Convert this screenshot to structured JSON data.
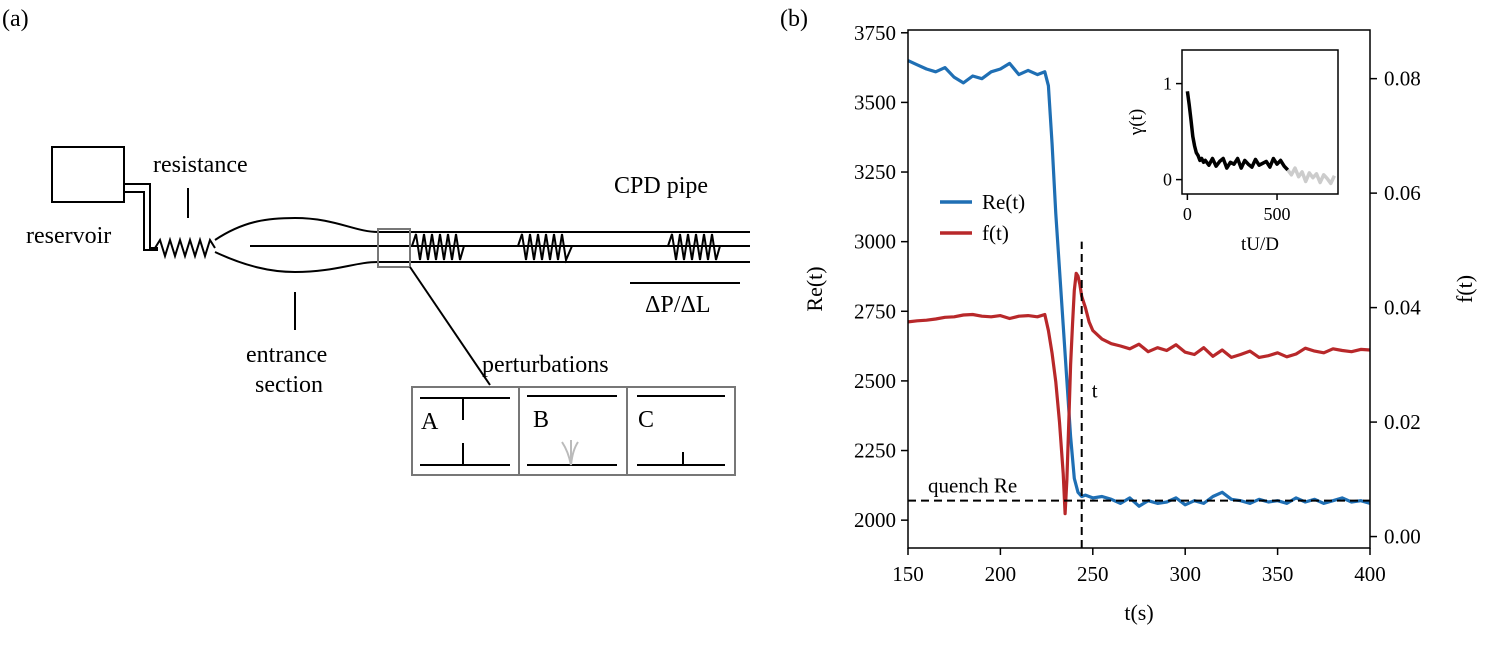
{
  "panel_a": {
    "label": "(a)",
    "labels": {
      "reservoir": "reservoir",
      "resistance": "resistance",
      "pipe": "CPD pipe",
      "pressure_gradient": "ΔP/ΔL",
      "entrance_line1": "entrance",
      "entrance_line2": "section",
      "perturbations": "perturbations",
      "box_a": "A",
      "box_b": "B",
      "box_c": "C"
    }
  },
  "panel_b": {
    "label": "(b)",
    "t_marker": "t",
    "quench_label": "quench Re"
  },
  "chart_data": [
    {
      "type": "line",
      "xlabel": "t(s)",
      "ylabel": "Re(t)",
      "ylabel_right": "f(t)",
      "xlim": [
        150,
        400
      ],
      "ylim": [
        1900,
        3760
      ],
      "ylim_right": [
        -0.002,
        0.0885
      ],
      "xticks": [
        150,
        200,
        250,
        300,
        350,
        400
      ],
      "yticks": [
        2000,
        2250,
        2500,
        2750,
        3000,
        3250,
        3500,
        3750
      ],
      "yticks_right": [
        0.0,
        0.02,
        0.04,
        0.06,
        0.08
      ],
      "yticks_right_labels": [
        "0.00",
        "0.02",
        "0.04",
        "0.06",
        "0.08"
      ],
      "legend_position": "center-left",
      "series": [
        {
          "name": "Re(t)",
          "axis": "left",
          "color": "#1f6fb4",
          "x": [
            150,
            155,
            160,
            165,
            170,
            175,
            180,
            185,
            190,
            195,
            200,
            205,
            210,
            215,
            220,
            224,
            226,
            228,
            230,
            232,
            234,
            236,
            238,
            240,
            242,
            244,
            246,
            250,
            255,
            260,
            265,
            270,
            275,
            280,
            285,
            290,
            295,
            300,
            305,
            310,
            315,
            320,
            325,
            330,
            335,
            340,
            345,
            350,
            355,
            360,
            365,
            370,
            375,
            380,
            385,
            390,
            395,
            400
          ],
          "values": [
            3650,
            3635,
            3620,
            3610,
            3625,
            3590,
            3570,
            3595,
            3585,
            3610,
            3620,
            3640,
            3600,
            3615,
            3600,
            3610,
            3560,
            3350,
            3100,
            2900,
            2700,
            2500,
            2300,
            2150,
            2100,
            2085,
            2090,
            2080,
            2085,
            2075,
            2060,
            2080,
            2050,
            2070,
            2060,
            2065,
            2080,
            2055,
            2070,
            2060,
            2085,
            2100,
            2075,
            2070,
            2060,
            2075,
            2065,
            2070,
            2060,
            2080,
            2065,
            2075,
            2060,
            2070,
            2080,
            2065,
            2070,
            2060
          ]
        },
        {
          "name": "f(t)",
          "axis": "right",
          "color": "#b8282a",
          "x": [
            150,
            155,
            160,
            165,
            170,
            175,
            180,
            185,
            190,
            195,
            200,
            205,
            210,
            215,
            220,
            224,
            226,
            228,
            230,
            232,
            234,
            235,
            236,
            237,
            238,
            239,
            240,
            241,
            242,
            243,
            244,
            246,
            248,
            250,
            255,
            260,
            265,
            270,
            275,
            280,
            285,
            290,
            295,
            300,
            305,
            310,
            315,
            320,
            325,
            330,
            335,
            340,
            345,
            350,
            355,
            360,
            365,
            370,
            375,
            380,
            385,
            390,
            395,
            400
          ],
          "values": [
            0.0375,
            0.0377,
            0.0378,
            0.038,
            0.0383,
            0.0384,
            0.0387,
            0.0388,
            0.0385,
            0.0384,
            0.0386,
            0.0381,
            0.0385,
            0.0386,
            0.0384,
            0.0388,
            0.036,
            0.032,
            0.027,
            0.02,
            0.011,
            0.004,
            0.01,
            0.02,
            0.03,
            0.037,
            0.043,
            0.046,
            0.0455,
            0.044,
            0.042,
            0.04,
            0.0375,
            0.036,
            0.0345,
            0.0337,
            0.0333,
            0.0328,
            0.0336,
            0.0323,
            0.033,
            0.0325,
            0.0335,
            0.0322,
            0.0318,
            0.033,
            0.0315,
            0.0326,
            0.0313,
            0.0318,
            0.0324,
            0.0313,
            0.0316,
            0.0321,
            0.0314,
            0.0319,
            0.0329,
            0.0324,
            0.0321,
            0.0328,
            0.0325,
            0.0323,
            0.0327,
            0.0326
          ]
        }
      ],
      "annotations": [
        {
          "type": "hline",
          "y": 2070,
          "x_from": 150,
          "x_to": 400,
          "label": "quench Re"
        },
        {
          "type": "vline",
          "x": 244,
          "y_from": 1900,
          "y_to": 3000,
          "label": "t"
        }
      ]
    },
    {
      "type": "line",
      "inset": true,
      "xlabel": "tU/D",
      "ylabel": "γ(t)",
      "xlim": [
        -30,
        840
      ],
      "ylim": [
        -0.15,
        1.35
      ],
      "xticks": [
        0,
        500
      ],
      "yticks": [
        0,
        1
      ],
      "series": [
        {
          "color": "#000000",
          "x": [
            0,
            10,
            20,
            30,
            40,
            50,
            60,
            70,
            80,
            90,
            100,
            120,
            140,
            160,
            180,
            200,
            220,
            240,
            260,
            280,
            300,
            320,
            340,
            360,
            380,
            400,
            420,
            440,
            460,
            480,
            500,
            520,
            540,
            560
          ],
          "values": [
            0.92,
            0.78,
            0.62,
            0.45,
            0.35,
            0.28,
            0.25,
            0.2,
            0.22,
            0.18,
            0.2,
            0.15,
            0.22,
            0.14,
            0.19,
            0.22,
            0.12,
            0.18,
            0.16,
            0.22,
            0.12,
            0.2,
            0.16,
            0.13,
            0.21,
            0.15,
            0.17,
            0.19,
            0.13,
            0.22,
            0.16,
            0.2,
            0.14,
            0.1
          ]
        },
        {
          "color": "#cccccc",
          "x": [
            560,
            580,
            600,
            620,
            640,
            660,
            680,
            700,
            720,
            740,
            760,
            780,
            800,
            820
          ],
          "values": [
            0.1,
            0.05,
            0.12,
            0.03,
            0.08,
            -0.02,
            0.07,
            0.02,
            0.06,
            -0.03,
            0.05,
            0.01,
            -0.04,
            0.04
          ]
        }
      ]
    }
  ]
}
